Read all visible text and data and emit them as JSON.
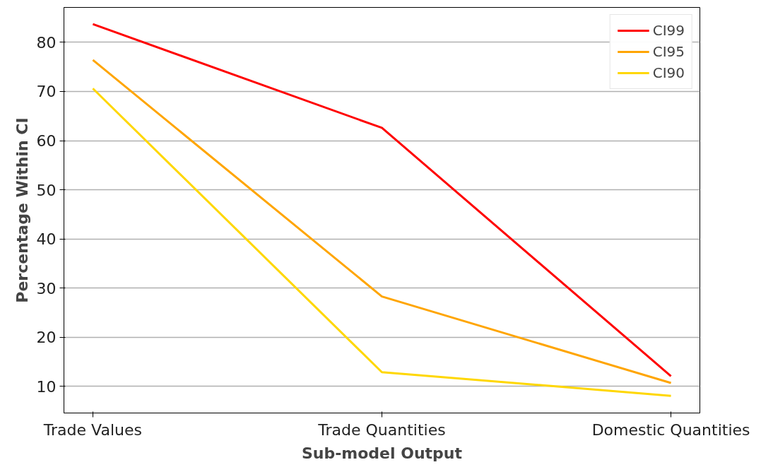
{
  "chart_data": {
    "type": "line",
    "xlabel": "Sub-model Output",
    "ylabel": "Percentage Within CI",
    "categories": [
      "Trade Values",
      "Trade Quantities",
      "Domestic Quantities"
    ],
    "series": [
      {
        "name": "CI99",
        "color": "#ff0000",
        "values": [
          83.7,
          62.6,
          12.1
        ]
      },
      {
        "name": "CI95",
        "color": "#ffa500",
        "values": [
          76.4,
          28.3,
          10.7
        ]
      },
      {
        "name": "CI90",
        "color": "#ffd700",
        "values": [
          70.6,
          12.9,
          8.1
        ]
      }
    ],
    "ylim": [
      4.6,
      87.1
    ],
    "yticks": [
      10,
      20,
      30,
      40,
      50,
      60,
      70,
      80
    ],
    "grid": "y",
    "legend": "top right",
    "marker": "none",
    "line_style": "solid"
  }
}
